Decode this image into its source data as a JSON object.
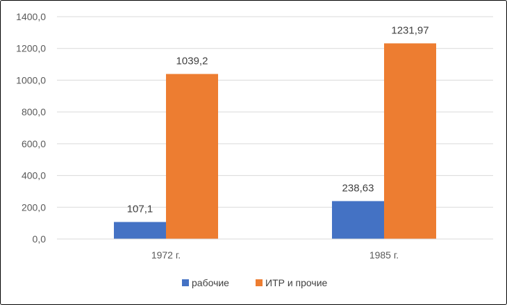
{
  "chart_data": {
    "type": "bar",
    "categories": [
      "1972 г.",
      "1985 г."
    ],
    "series": [
      {
        "name": "рабочие",
        "values": [
          107.1,
          238.63
        ],
        "labels": [
          "107,1",
          "238,63"
        ],
        "color": "#4472C4"
      },
      {
        "name": "ИТР и прочие",
        "values": [
          1039.2,
          1231.97
        ],
        "labels": [
          "1039,2",
          "1231,97"
        ],
        "color": "#ED7D31"
      }
    ],
    "ylim": [
      0,
      1400
    ],
    "yticks": [
      0,
      200,
      400,
      600,
      800,
      1000,
      1200,
      1400
    ],
    "ytick_labels": [
      "0,0",
      "200,0",
      "400,0",
      "600,0",
      "800,0",
      "1000,0",
      "1200,0",
      "1400,0"
    ],
    "grid": true,
    "legend_position": "bottom",
    "title": "",
    "xlabel": "",
    "ylabel": ""
  }
}
